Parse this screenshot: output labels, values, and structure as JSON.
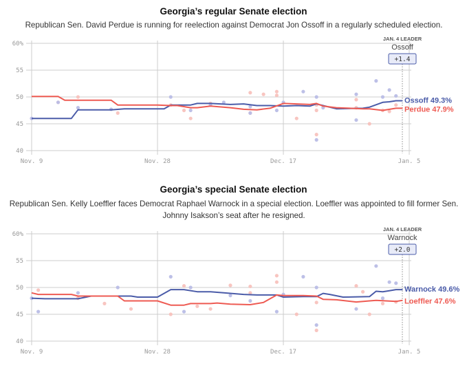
{
  "charts": [
    {
      "title": "Georgia’s regular Senate election",
      "subtitle": "Republican Sen. David Perdue is running for reelection against Democrat Jon Ossoff in a regularly scheduled election.",
      "leader_header": "JAN. 4 LEADER",
      "leader_name": "Ossoff",
      "leader_margin": "+1.4",
      "end_labels": {
        "dem": "Ossoff 49.3%",
        "rep": "Perdue 47.9%"
      }
    },
    {
      "title": "Georgia’s special Senate election",
      "subtitle": "Republican Sen. Kelly Loeffler faces Democrat Raphael Warnock in a special election. Loeffler was appointed to fill former Sen. Johnny Isakson’s seat after he resigned.",
      "leader_header": "JAN. 4 LEADER",
      "leader_name": "Warnock",
      "leader_margin": "+2.0",
      "end_labels": {
        "dem": "Warnock 49.6%",
        "rep": "Loeffler 47.6%"
      }
    }
  ],
  "colors": {
    "dem": "#4a5ba8",
    "rep": "#ee5a52",
    "dem_dot": "#b9bde6",
    "rep_dot": "#f8c2bd",
    "grid": "#cccccc",
    "axis_text": "#999999"
  },
  "chart_data": [
    {
      "type": "line",
      "title": "Georgia’s regular Senate election",
      "x_ticks": [
        "Nov. 9",
        "Nov. 28",
        "Dec. 17",
        "Jan. 5"
      ],
      "y_ticks": [
        "60%",
        "55",
        "50",
        "45",
        "40"
      ],
      "ylim": [
        40,
        60
      ],
      "xlim": [
        "2020-11-09",
        "2021-01-05"
      ],
      "series": [
        {
          "name": "Ossoff",
          "party": "dem",
          "x": [
            "2020-11-09",
            "2020-11-15",
            "2020-11-16",
            "2020-11-21",
            "2020-11-23",
            "2020-11-25",
            "2020-11-29",
            "2020-11-30",
            "2020-12-01",
            "2020-12-03",
            "2020-12-04",
            "2020-12-06",
            "2020-12-09",
            "2020-12-11",
            "2020-12-13",
            "2020-12-15",
            "2020-12-17",
            "2020-12-19",
            "2020-12-21",
            "2020-12-22",
            "2020-12-23",
            "2020-12-25",
            "2020-12-29",
            "2020-12-30",
            "2021-01-01",
            "2021-01-02",
            "2021-01-03",
            "2021-01-04"
          ],
          "values": [
            46,
            46,
            47.6,
            47.6,
            47.8,
            47.8,
            47.8,
            48.5,
            48.5,
            48.5,
            48.8,
            48.8,
            48.6,
            48.7,
            48.4,
            48.4,
            48.3,
            48.4,
            48.3,
            48.7,
            48.4,
            47.8,
            47.9,
            48.1,
            49.0,
            49.1,
            49.3,
            49.3
          ]
        },
        {
          "name": "Perdue",
          "party": "rep",
          "x": [
            "2020-11-09",
            "2020-11-13",
            "2020-11-14",
            "2020-11-18",
            "2020-11-21",
            "2020-11-22",
            "2020-11-28",
            "2020-11-30",
            "2020-12-01",
            "2020-12-03",
            "2020-12-04",
            "2020-12-06",
            "2020-12-09",
            "2020-12-11",
            "2020-12-13",
            "2020-12-15",
            "2020-12-17",
            "2020-12-19",
            "2020-12-21",
            "2020-12-22",
            "2020-12-23",
            "2020-12-25",
            "2020-12-29",
            "2020-12-30",
            "2021-01-01",
            "2021-01-03",
            "2021-01-04"
          ],
          "values": [
            50.1,
            50.1,
            49.4,
            49.4,
            49.4,
            48.5,
            48.5,
            48.4,
            48.4,
            48,
            48,
            48.3,
            48,
            47.7,
            47.6,
            47.9,
            48.8,
            48.7,
            48.6,
            48.8,
            48.3,
            48,
            47.8,
            47.8,
            47.5,
            47.9,
            47.9
          ]
        }
      ],
      "polls": {
        "dem": [
          [
            "2020-11-09",
            46
          ],
          [
            "2020-11-13",
            49
          ],
          [
            "2020-11-16",
            48
          ],
          [
            "2020-11-21",
            47.7
          ],
          [
            "2020-11-30",
            50
          ],
          [
            "2020-12-03",
            47.5
          ],
          [
            "2020-12-06",
            48.5
          ],
          [
            "2020-12-08",
            49
          ],
          [
            "2020-12-12",
            48.2
          ],
          [
            "2020-12-12",
            47
          ],
          [
            "2020-12-16",
            47.5
          ],
          [
            "2020-12-17",
            49
          ],
          [
            "2020-12-20",
            51
          ],
          [
            "2020-12-22",
            42
          ],
          [
            "2020-12-22",
            50
          ],
          [
            "2020-12-23",
            48
          ],
          [
            "2020-12-28",
            45.7
          ],
          [
            "2020-12-28",
            50.5
          ],
          [
            "2020-12-31",
            53
          ],
          [
            "2021-01-01",
            50
          ],
          [
            "2021-01-02",
            51.3
          ],
          [
            "2021-01-03",
            50.2
          ]
        ],
        "rep": [
          [
            "2020-11-13",
            49
          ],
          [
            "2020-11-16",
            50
          ],
          [
            "2020-11-22",
            47
          ],
          [
            "2020-11-30",
            48.5
          ],
          [
            "2020-12-02",
            47.5
          ],
          [
            "2020-12-03",
            46
          ],
          [
            "2020-12-06",
            48.8
          ],
          [
            "2020-12-12",
            47
          ],
          [
            "2020-12-12",
            50.8
          ],
          [
            "2020-12-14",
            50.5
          ],
          [
            "2020-12-16",
            51
          ],
          [
            "2020-12-16",
            50.3
          ],
          [
            "2020-12-19",
            46
          ],
          [
            "2020-12-22",
            43
          ],
          [
            "2020-12-22",
            47.5
          ],
          [
            "2020-12-22",
            48.5
          ],
          [
            "2020-12-28",
            48
          ],
          [
            "2020-12-28",
            49.5
          ],
          [
            "2020-12-30",
            45
          ],
          [
            "2021-01-01",
            47.5
          ],
          [
            "2021-01-02",
            47.3
          ],
          [
            "2021-01-03",
            48.5
          ]
        ]
      },
      "end_values": {
        "Ossoff": 49.3,
        "Perdue": 47.9
      }
    },
    {
      "type": "line",
      "title": "Georgia’s special Senate election",
      "x_ticks": [
        "Nov. 9",
        "Nov. 28",
        "Dec. 17",
        "Jan. 5"
      ],
      "y_ticks": [
        "60%",
        "55",
        "50",
        "45",
        "40"
      ],
      "ylim": [
        40,
        60
      ],
      "xlim": [
        "2020-11-09",
        "2021-01-05"
      ],
      "series": [
        {
          "name": "Warnock",
          "party": "dem",
          "x": [
            "2020-11-09",
            "2020-11-11",
            "2020-11-16",
            "2020-11-18",
            "2020-11-24",
            "2020-11-25",
            "2020-11-27",
            "2020-11-28",
            "2020-11-30",
            "2020-12-02",
            "2020-12-04",
            "2020-12-06",
            "2020-12-08",
            "2020-12-11",
            "2020-12-13",
            "2020-12-16",
            "2020-12-17",
            "2020-12-20",
            "2020-12-22",
            "2020-12-23",
            "2020-12-24",
            "2020-12-26",
            "2020-12-30",
            "2020-12-31",
            "2021-01-01",
            "2021-01-02",
            "2021-01-03",
            "2021-01-04"
          ],
          "values": [
            48,
            47.9,
            47.9,
            48.4,
            48.4,
            48.2,
            48.2,
            48.2,
            49.6,
            49.6,
            49.2,
            49.2,
            49.0,
            48.7,
            48.6,
            48.6,
            48.2,
            48.3,
            48.3,
            48.9,
            48.7,
            48.2,
            48.3,
            49.3,
            49.2,
            49.4,
            49.6,
            49.6
          ]
        },
        {
          "name": "Loeffler",
          "party": "rep",
          "x": [
            "2020-11-09",
            "2020-11-10",
            "2020-11-15",
            "2020-11-16",
            "2020-11-22",
            "2020-11-23",
            "2020-11-28",
            "2020-11-30",
            "2020-12-02",
            "2020-12-03",
            "2020-12-06",
            "2020-12-07",
            "2020-12-09",
            "2020-12-12",
            "2020-12-14",
            "2020-12-16",
            "2020-12-17",
            "2020-12-20",
            "2020-12-22",
            "2020-12-23",
            "2020-12-25",
            "2020-12-28",
            "2020-12-30",
            "2020-12-31",
            "2021-01-03",
            "2021-01-04"
          ],
          "values": [
            49,
            48.7,
            48.7,
            48.4,
            48.4,
            47.5,
            47.5,
            46.7,
            46.7,
            47.0,
            47.0,
            47.1,
            46.9,
            46.8,
            47.2,
            48.6,
            48.5,
            48.5,
            48.4,
            47.8,
            47.7,
            47.3,
            47.5,
            47.6,
            47.4,
            47.6
          ]
        }
      ],
      "polls": {
        "dem": [
          [
            "2020-11-09",
            48
          ],
          [
            "2020-11-10",
            45.5
          ],
          [
            "2020-11-16",
            49
          ],
          [
            "2020-11-22",
            50
          ],
          [
            "2020-11-30",
            52
          ],
          [
            "2020-12-02",
            45.5
          ],
          [
            "2020-12-03",
            50
          ],
          [
            "2020-12-09",
            48.5
          ],
          [
            "2020-12-12",
            47.5
          ],
          [
            "2020-12-16",
            45.5
          ],
          [
            "2020-12-17",
            48.7
          ],
          [
            "2020-12-20",
            52
          ],
          [
            "2020-12-22",
            43
          ],
          [
            "2020-12-22",
            50
          ],
          [
            "2020-12-28",
            46
          ],
          [
            "2020-12-31",
            54
          ],
          [
            "2021-01-01",
            48
          ],
          [
            "2021-01-02",
            51
          ],
          [
            "2021-01-03",
            50.8
          ]
        ],
        "rep": [
          [
            "2020-11-10",
            49.5
          ],
          [
            "2020-11-16",
            48
          ],
          [
            "2020-11-20",
            47
          ],
          [
            "2020-11-24",
            46
          ],
          [
            "2020-11-30",
            45
          ],
          [
            "2020-12-02",
            50.3
          ],
          [
            "2020-12-04",
            46.5
          ],
          [
            "2020-12-06",
            46
          ],
          [
            "2020-12-09",
            50.4
          ],
          [
            "2020-12-12",
            50.2
          ],
          [
            "2020-12-12",
            49
          ],
          [
            "2020-12-16",
            52.2
          ],
          [
            "2020-12-16",
            51
          ],
          [
            "2020-12-19",
            45
          ],
          [
            "2020-12-22",
            42
          ],
          [
            "2020-12-22",
            47.2
          ],
          [
            "2020-12-28",
            50.3
          ],
          [
            "2020-12-29",
            49.2
          ],
          [
            "2020-12-30",
            45
          ],
          [
            "2021-01-01",
            47
          ],
          [
            "2021-01-03",
            47.3
          ]
        ]
      },
      "end_values": {
        "Warnock": 49.6,
        "Loeffler": 47.6
      }
    }
  ]
}
